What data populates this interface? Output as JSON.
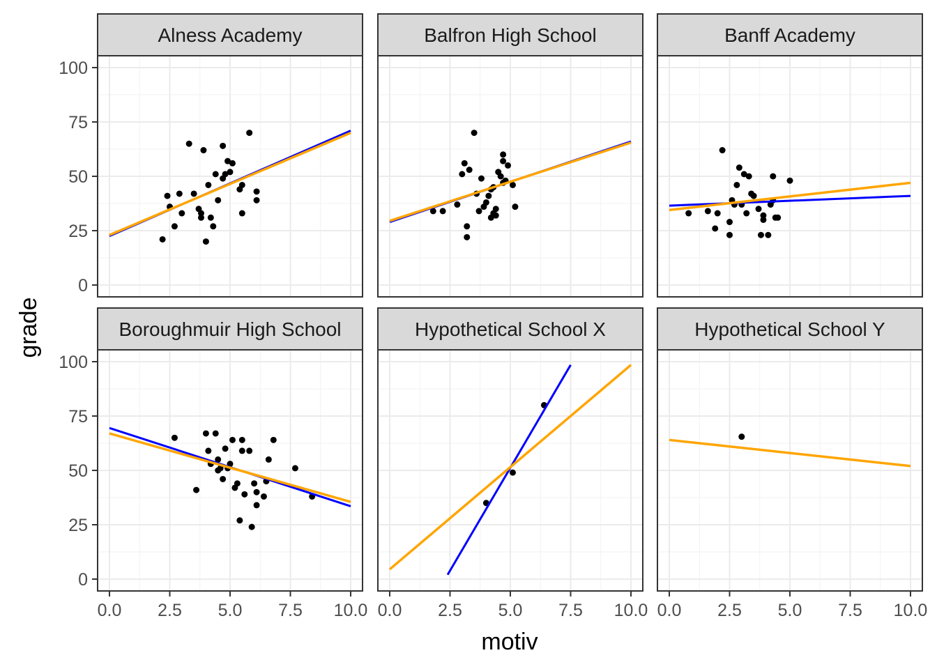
{
  "chart_data": {
    "type": "scatter",
    "xlabel": "motiv",
    "ylabel": "grade",
    "xlim": [
      0,
      10
    ],
    "ylim": [
      0,
      100
    ],
    "x_ticks": [
      "0.0",
      "2.5",
      "5.0",
      "7.5",
      "10.0"
    ],
    "y_ticks": [
      "0",
      "25",
      "50",
      "75",
      "100"
    ],
    "grid": true,
    "line_colors": {
      "blue": "#0000ff",
      "orange": "#ffa500"
    },
    "point_color": "#000000",
    "strip_fill": "#d9d9d9",
    "panels": [
      {
        "title": "Alness Academy",
        "points": [
          [
            2.2,
            21
          ],
          [
            2.4,
            41
          ],
          [
            2.5,
            36
          ],
          [
            2.7,
            27
          ],
          [
            2.9,
            42
          ],
          [
            3.0,
            33
          ],
          [
            3.3,
            65
          ],
          [
            3.5,
            42
          ],
          [
            3.7,
            35
          ],
          [
            3.8,
            31
          ],
          [
            3.8,
            33
          ],
          [
            3.9,
            62
          ],
          [
            4.0,
            20
          ],
          [
            4.1,
            46
          ],
          [
            4.2,
            31
          ],
          [
            4.3,
            27
          ],
          [
            4.4,
            51
          ],
          [
            4.5,
            39
          ],
          [
            4.7,
            49
          ],
          [
            4.7,
            64
          ],
          [
            4.8,
            51
          ],
          [
            4.9,
            57
          ],
          [
            5.0,
            52
          ],
          [
            5.1,
            56
          ],
          [
            5.4,
            44
          ],
          [
            5.5,
            46
          ],
          [
            5.5,
            33
          ],
          [
            5.8,
            70
          ],
          [
            6.1,
            43
          ],
          [
            6.1,
            39
          ]
        ],
        "blue_line": {
          "x": [
            0,
            10
          ],
          "y": [
            22.5,
            71
          ]
        },
        "orange_line": {
          "x": [
            0,
            10
          ],
          "y": [
            23,
            70
          ]
        }
      },
      {
        "title": "Balfron High School",
        "points": [
          [
            1.8,
            34
          ],
          [
            2.2,
            34
          ],
          [
            2.8,
            37
          ],
          [
            3.0,
            51
          ],
          [
            3.1,
            56
          ],
          [
            3.2,
            27
          ],
          [
            3.2,
            22
          ],
          [
            3.3,
            53
          ],
          [
            3.5,
            70
          ],
          [
            3.6,
            42
          ],
          [
            3.7,
            34
          ],
          [
            3.8,
            49
          ],
          [
            3.9,
            36
          ],
          [
            4.0,
            38
          ],
          [
            4.1,
            41
          ],
          [
            4.2,
            31
          ],
          [
            4.2,
            44
          ],
          [
            4.3,
            45
          ],
          [
            4.3,
            33
          ],
          [
            4.4,
            35
          ],
          [
            4.4,
            32
          ],
          [
            4.5,
            52
          ],
          [
            4.6,
            50
          ],
          [
            4.7,
            60
          ],
          [
            4.7,
            57
          ],
          [
            4.7,
            47
          ],
          [
            4.8,
            48
          ],
          [
            4.9,
            55
          ],
          [
            5.1,
            46
          ],
          [
            5.2,
            36
          ]
        ],
        "blue_line": {
          "x": [
            0,
            10
          ],
          "y": [
            29,
            66
          ]
        },
        "orange_line": {
          "x": [
            0,
            10
          ],
          "y": [
            29.5,
            65.5
          ]
        }
      },
      {
        "title": "Banff Academy",
        "points": [
          [
            0.8,
            33
          ],
          [
            1.6,
            34
          ],
          [
            1.9,
            26
          ],
          [
            2.0,
            33
          ],
          [
            2.2,
            62
          ],
          [
            2.5,
            23
          ],
          [
            2.5,
            29
          ],
          [
            2.6,
            39
          ],
          [
            2.7,
            37
          ],
          [
            2.8,
            46
          ],
          [
            2.9,
            54
          ],
          [
            3.0,
            37
          ],
          [
            3.1,
            51
          ],
          [
            3.2,
            33
          ],
          [
            3.3,
            50
          ],
          [
            3.4,
            42
          ],
          [
            3.5,
            41
          ],
          [
            3.7,
            35
          ],
          [
            3.8,
            23
          ],
          [
            3.9,
            32
          ],
          [
            3.9,
            30
          ],
          [
            4.1,
            23
          ],
          [
            4.2,
            37
          ],
          [
            4.3,
            50
          ],
          [
            4.3,
            39
          ],
          [
            4.4,
            31
          ],
          [
            4.5,
            31
          ],
          [
            5.0,
            48
          ]
        ],
        "blue_line": {
          "x": [
            0,
            10
          ],
          "y": [
            36.5,
            41
          ]
        },
        "orange_line": {
          "x": [
            0,
            10
          ],
          "y": [
            34.5,
            47
          ]
        }
      },
      {
        "title": "Boroughmuir High School",
        "points": [
          [
            2.7,
            65
          ],
          [
            3.6,
            41
          ],
          [
            4.0,
            67
          ],
          [
            4.1,
            59
          ],
          [
            4.2,
            53
          ],
          [
            4.4,
            67
          ],
          [
            4.5,
            55
          ],
          [
            4.5,
            50
          ],
          [
            4.6,
            51
          ],
          [
            4.7,
            46
          ],
          [
            4.8,
            60
          ],
          [
            4.9,
            51
          ],
          [
            5.0,
            53
          ],
          [
            5.1,
            64
          ],
          [
            5.2,
            42
          ],
          [
            5.3,
            44
          ],
          [
            5.4,
            27
          ],
          [
            5.5,
            59
          ],
          [
            5.5,
            64
          ],
          [
            5.6,
            39
          ],
          [
            5.8,
            59
          ],
          [
            5.9,
            24
          ],
          [
            6.0,
            44
          ],
          [
            6.1,
            40
          ],
          [
            6.1,
            34
          ],
          [
            6.4,
            38
          ],
          [
            6.5,
            45
          ],
          [
            6.6,
            55
          ],
          [
            6.8,
            64
          ],
          [
            7.7,
            51
          ],
          [
            8.4,
            38
          ]
        ],
        "blue_line": {
          "x": [
            0,
            10
          ],
          "y": [
            69.5,
            33.5
          ]
        },
        "orange_line": {
          "x": [
            0,
            10
          ],
          "y": [
            67,
            35.5
          ]
        }
      },
      {
        "title": "Hypothetical School X",
        "points": [
          [
            4.0,
            35
          ],
          [
            5.1,
            49
          ],
          [
            6.4,
            80
          ]
        ],
        "blue_line": {
          "x": [
            2.4,
            7.5
          ],
          "y": [
            2,
            98.5
          ]
        },
        "orange_line": {
          "x": [
            0,
            10
          ],
          "y": [
            4.5,
            98.5
          ]
        }
      },
      {
        "title": "Hypothetical School Y",
        "points": [
          [
            3.0,
            65.5
          ]
        ],
        "orange_line": {
          "x": [
            0,
            10
          ],
          "y": [
            64,
            52
          ]
        }
      }
    ]
  }
}
